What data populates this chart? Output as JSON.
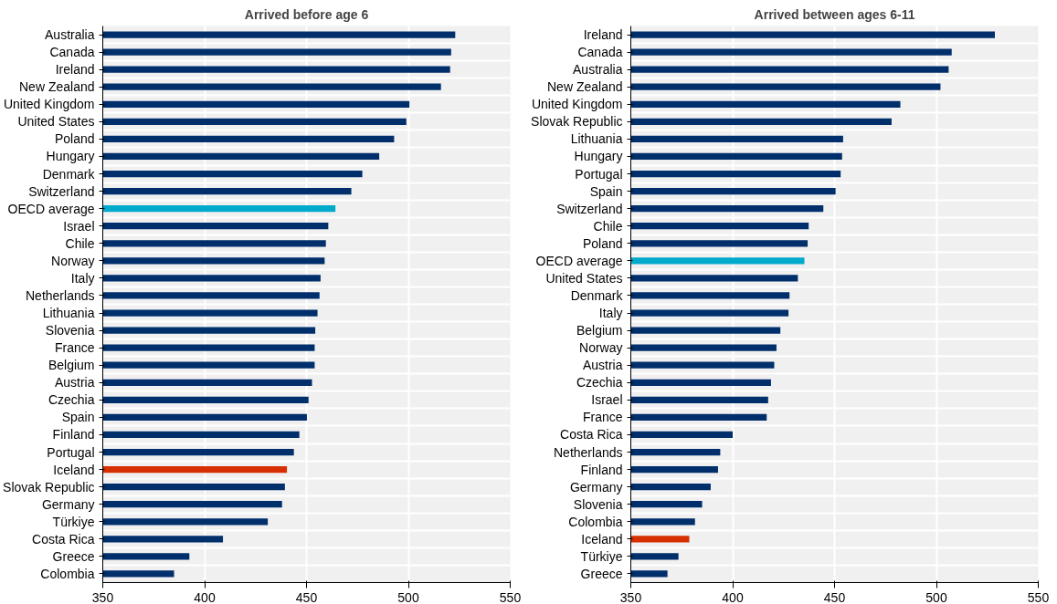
{
  "chart_data": [
    {
      "type": "bar",
      "orientation": "horizontal",
      "title": "Arrived before age 6",
      "categories": [
        "Australia",
        "Canada",
        "Ireland",
        "New Zealand",
        "United Kingdom",
        "United States",
        "Poland",
        "Hungary",
        "Denmark",
        "Switzerland",
        "OECD average",
        "Israel",
        "Chile",
        "Norway",
        "Italy",
        "Netherlands",
        "Lithuania",
        "Slovenia",
        "France",
        "Belgium",
        "Austria",
        "Czechia",
        "Spain",
        "Finland",
        "Portugal",
        "Iceland",
        "Slovak Republic",
        "Germany",
        "Türkiye",
        "Costa Rica",
        "Greece",
        "Colombia"
      ],
      "values": [
        523,
        521,
        520.5,
        516,
        500.5,
        499,
        493,
        485.7,
        477.4,
        472,
        464.2,
        460.7,
        459.5,
        458.9,
        456.9,
        456.4,
        455.4,
        454.3,
        454,
        454,
        452.7,
        451,
        450.2,
        446.5,
        443.8,
        440.4,
        439.4,
        438,
        431,
        409,
        392.5,
        385
      ],
      "colors": [
        "#002f6c",
        "#002f6c",
        "#002f6c",
        "#002f6c",
        "#002f6c",
        "#002f6c",
        "#002f6c",
        "#002f6c",
        "#002f6c",
        "#002f6c",
        "#00aacc",
        "#002f6c",
        "#002f6c",
        "#002f6c",
        "#002f6c",
        "#002f6c",
        "#002f6c",
        "#002f6c",
        "#002f6c",
        "#002f6c",
        "#002f6c",
        "#002f6c",
        "#002f6c",
        "#002f6c",
        "#002f6c",
        "#d62f00",
        "#002f6c",
        "#002f6c",
        "#002f6c",
        "#002f6c",
        "#002f6c",
        "#002f6c"
      ],
      "xlim": [
        350,
        550
      ],
      "xticks": [
        350,
        400,
        450,
        500,
        550
      ],
      "grid": true
    },
    {
      "type": "bar",
      "orientation": "horizontal",
      "title": "Arrived between ages 6-11",
      "categories": [
        "Ireland",
        "Canada",
        "Australia",
        "New Zealand",
        "United Kingdom",
        "Slovak Republic",
        "Lithuania",
        "Hungary",
        "Portugal",
        "Spain",
        "Switzerland",
        "Chile",
        "Poland",
        "OECD average",
        "United States",
        "Denmark",
        "Italy",
        "Belgium",
        "Norway",
        "Austria",
        "Czechia",
        "Israel",
        "France",
        "Costa Rica",
        "Netherlands",
        "Finland",
        "Germany",
        "Slovenia",
        "Colombia",
        "Iceland",
        "Türkiye",
        "Greece"
      ],
      "values": [
        528.7,
        507.5,
        506,
        502,
        482.3,
        478,
        454.2,
        453.7,
        453,
        450.5,
        444.5,
        437.3,
        436.8,
        435.2,
        432,
        427.9,
        427.4,
        423.4,
        421.5,
        420.4,
        418.8,
        417.4,
        416.7,
        400,
        393.9,
        392.8,
        389.2,
        385,
        381.5,
        378.7,
        373.4,
        368
      ],
      "colors": [
        "#002f6c",
        "#002f6c",
        "#002f6c",
        "#002f6c",
        "#002f6c",
        "#002f6c",
        "#002f6c",
        "#002f6c",
        "#002f6c",
        "#002f6c",
        "#002f6c",
        "#002f6c",
        "#002f6c",
        "#00aacc",
        "#002f6c",
        "#002f6c",
        "#002f6c",
        "#002f6c",
        "#002f6c",
        "#002f6c",
        "#002f6c",
        "#002f6c",
        "#002f6c",
        "#002f6c",
        "#002f6c",
        "#002f6c",
        "#002f6c",
        "#002f6c",
        "#002f6c",
        "#d62f00",
        "#002f6c",
        "#002f6c"
      ],
      "xlim": [
        350,
        550
      ],
      "xticks": [
        350,
        400,
        450,
        500,
        550
      ],
      "grid": true
    }
  ]
}
